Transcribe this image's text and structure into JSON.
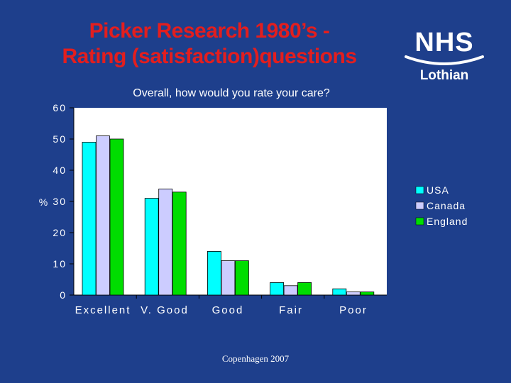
{
  "slide": {
    "title_line1": "Picker Research 1980’s -",
    "title_line2": "Rating (satisfaction)questions",
    "footer": "Copenhagen 2007"
  },
  "logo": {
    "main": "NHS",
    "sub": "Lothian"
  },
  "colors": {
    "background": "#1e3f8c",
    "title": "#e31e1e",
    "plot_area": "#ffffff",
    "usa": "#00ffff",
    "canada": "#ccccff",
    "england": "#00dd00"
  },
  "chart_data": {
    "type": "bar",
    "title": "Overall, how would you rate your care?",
    "xlabel": "",
    "ylabel": "%",
    "ylim": [
      0,
      60
    ],
    "yticks": [
      "0",
      "10",
      "20",
      "30",
      "40",
      "50",
      "60"
    ],
    "categories": [
      "Excellent",
      "V. Good",
      "Good",
      "Fair",
      "Poor"
    ],
    "series": [
      {
        "name": "USA",
        "color": "#00ffff",
        "values": [
          49,
          31,
          14,
          4,
          2
        ]
      },
      {
        "name": "Canada",
        "color": "#ccccff",
        "values": [
          51,
          34,
          11,
          3,
          1
        ]
      },
      {
        "name": "England",
        "color": "#00dd00",
        "values": [
          50,
          33,
          11,
          4,
          1
        ]
      }
    ],
    "grid": false,
    "legend_position": "right"
  }
}
